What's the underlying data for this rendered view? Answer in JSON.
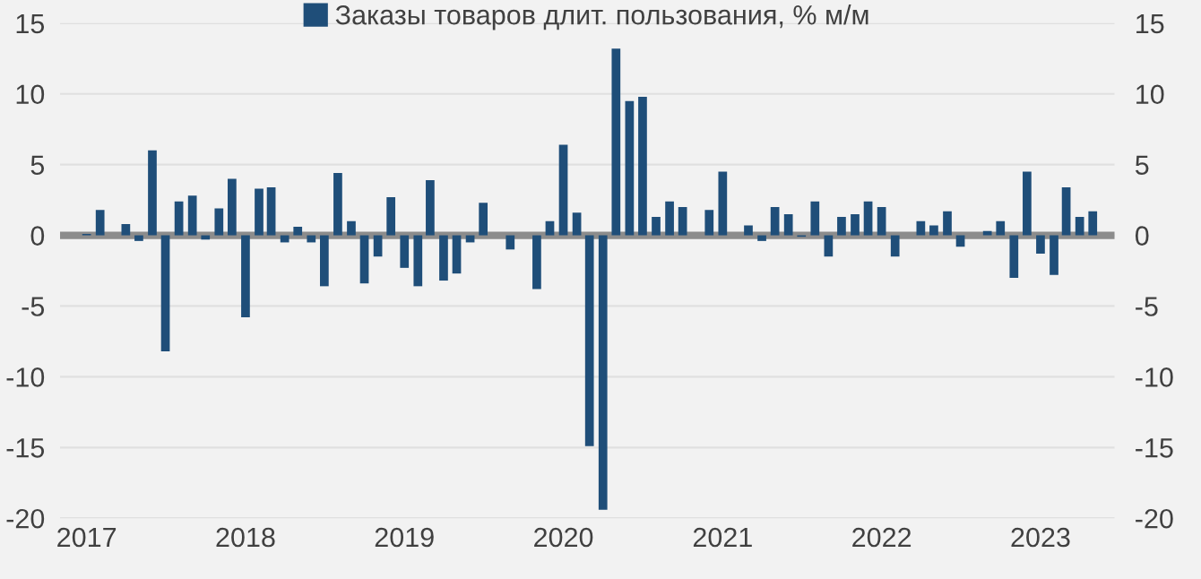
{
  "chart_data": {
    "type": "bar",
    "x": [
      "2017-01",
      "2017-02",
      "2017-03",
      "2017-04",
      "2017-05",
      "2017-06",
      "2017-07",
      "2017-08",
      "2017-09",
      "2017-10",
      "2017-11",
      "2017-12",
      "2018-01",
      "2018-02",
      "2018-03",
      "2018-04",
      "2018-05",
      "2018-06",
      "2018-07",
      "2018-08",
      "2018-09",
      "2018-10",
      "2018-11",
      "2018-12",
      "2019-01",
      "2019-02",
      "2019-03",
      "2019-04",
      "2019-05",
      "2019-06",
      "2019-07",
      "2019-08",
      "2019-09",
      "2019-10",
      "2019-11",
      "2019-12",
      "2020-01",
      "2020-02",
      "2020-03",
      "2020-04",
      "2020-05",
      "2020-06",
      "2020-07",
      "2020-08",
      "2020-09",
      "2020-10",
      "2020-11",
      "2020-12",
      "2021-01",
      "2021-02",
      "2021-03",
      "2021-04",
      "2021-05",
      "2021-06",
      "2021-07",
      "2021-08",
      "2021-09",
      "2021-10",
      "2021-11",
      "2021-12",
      "2022-01",
      "2022-02",
      "2022-03",
      "2022-04",
      "2022-05",
      "2022-06",
      "2022-07",
      "2022-08",
      "2022-09",
      "2022-10",
      "2022-11",
      "2022-12",
      "2023-01",
      "2023-02",
      "2023-03",
      "2023-04",
      "2023-05"
    ],
    "series": [
      {
        "name": "Заказы товаров длит. пользования, % м/м",
        "color": "#1f4e79",
        "values": [
          0.1,
          1.8,
          0,
          0.8,
          -0.4,
          6.0,
          -8.2,
          2.4,
          2.8,
          -0.3,
          1.9,
          4.0,
          -5.8,
          3.3,
          3.4,
          -0.5,
          0.6,
          -0.5,
          -3.6,
          4.4,
          1.0,
          -3.4,
          -1.5,
          2.7,
          -2.3,
          -3.6,
          3.9,
          -3.2,
          -2.7,
          -0.5,
          2.3,
          0,
          -1.0,
          0,
          -3.8,
          1.0,
          6.4,
          1.6,
          -14.9,
          -19.4,
          13.2,
          9.5,
          9.8,
          1.3,
          2.4,
          2.0,
          0,
          1.8,
          4.5,
          0,
          0.7,
          -0.4,
          2.0,
          1.5,
          -0.1,
          2.4,
          -1.5,
          1.3,
          1.5,
          2.4,
          2.0,
          -1.5,
          0,
          1.0,
          0.7,
          1.7,
          -0.8,
          0,
          0.3,
          1.0,
          -3.0,
          4.5,
          -1.3,
          -2.8,
          3.4,
          1.3,
          1.7
        ]
      }
    ],
    "xlim": [
      "2016-11-01",
      "2023-06-20"
    ],
    "xticks": [
      "2017",
      "2018",
      "2019",
      "2020",
      "2021",
      "2022",
      "2023"
    ],
    "ylim": [
      -20,
      15
    ],
    "yticks": [
      -20,
      -15,
      -10,
      -5,
      0,
      5,
      10,
      15
    ],
    "y2lim": [
      -20,
      15
    ],
    "y2ticks": [
      -20,
      -15,
      -10,
      -5,
      0,
      5,
      10,
      15
    ],
    "ref_lines": [
      {
        "axis": "y",
        "value": 0,
        "label": null,
        "color": "#8c8c8c"
      }
    ],
    "grid": "y",
    "legend": "top"
  }
}
